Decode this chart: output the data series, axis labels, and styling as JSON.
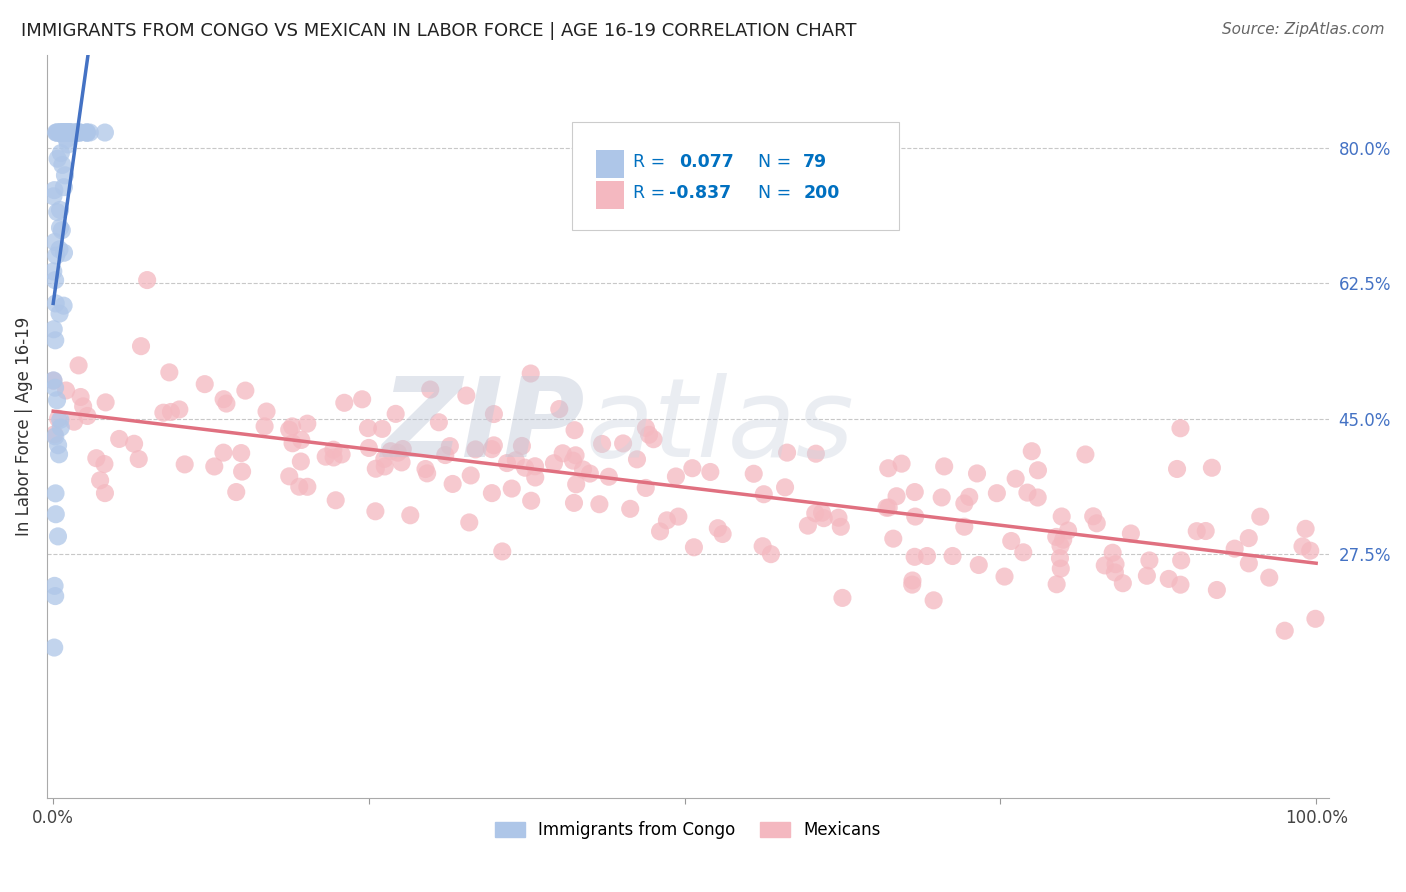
{
  "title": "IMMIGRANTS FROM CONGO VS MEXICAN IN LABOR FORCE | AGE 16-19 CORRELATION CHART",
  "source": "Source: ZipAtlas.com",
  "ylabel": "In Labor Force | Age 16-19",
  "congo_R": 0.077,
  "congo_N": 79,
  "mexican_R": -0.837,
  "mexican_N": 200,
  "congo_color": "#aec6e8",
  "mexican_color": "#f4b8c0",
  "congo_line_color": "#4472c4",
  "mexican_line_color": "#e07080",
  "dash_line_color": "#8899cc",
  "legend_color_blue": "#0070c0",
  "background_color": "#ffffff",
  "y_ticks_right": [
    0.8,
    0.625,
    0.45,
    0.275
  ],
  "y_tick_labels_right": [
    "80.0%",
    "62.5%",
    "45.0%",
    "27.5%"
  ]
}
